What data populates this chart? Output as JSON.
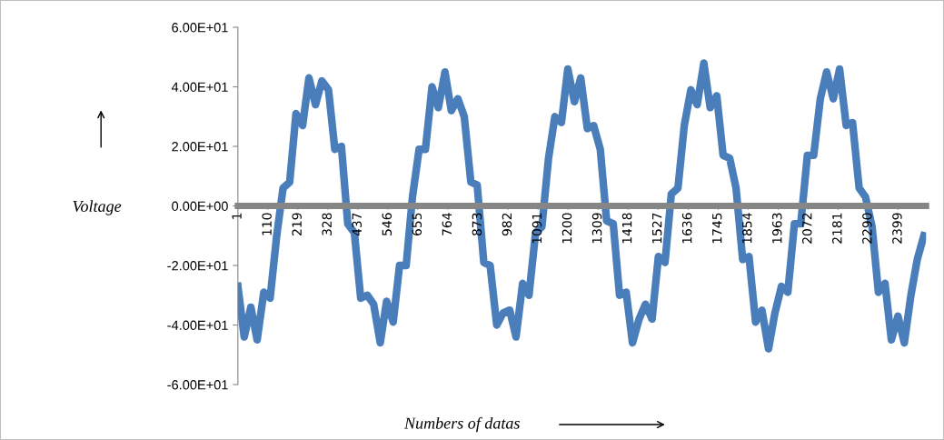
{
  "chart_data": {
    "type": "line",
    "xlabel": "Numbers of datas",
    "ylabel": "Voltage",
    "xlim": [
      1,
      2500
    ],
    "xticks": [
      1,
      110,
      219,
      328,
      437,
      546,
      655,
      764,
      873,
      982,
      1091,
      1200,
      1309,
      1418,
      1527,
      1636,
      1745,
      1854,
      1963,
      2072,
      2181,
      2290,
      2399
    ],
    "ylim": [
      -60,
      60
    ],
    "yticks": [
      {
        "value": -60,
        "label": "-6.00E+01"
      },
      {
        "value": -40,
        "label": "-4.00E+01"
      },
      {
        "value": -20,
        "label": "-2.00E+01"
      },
      {
        "value": 0,
        "label": "0.00E+00"
      },
      {
        "value": 20,
        "label": "2.00E+01"
      },
      {
        "value": 40,
        "label": "4.00E+01"
      },
      {
        "value": 60,
        "label": "6.00E+01"
      }
    ],
    "grid": false,
    "legend": false,
    "marker": "none",
    "line_style": "solid",
    "series": [
      {
        "color": "#4a7ebb",
        "x": [
          1,
          24,
          48,
          71,
          95,
          118,
          142,
          165,
          189,
          212,
          236,
          259,
          283,
          306,
          330,
          353,
          377,
          400,
          424,
          447,
          471,
          494,
          518,
          541,
          565,
          588,
          612,
          635,
          659,
          682,
          706,
          729,
          753,
          776,
          800,
          823,
          847,
          870,
          894,
          917,
          941,
          964,
          988,
          1011,
          1035,
          1058,
          1082,
          1105,
          1129,
          1152,
          1176,
          1199,
          1223,
          1246,
          1270,
          1293,
          1317,
          1340,
          1364,
          1387,
          1411,
          1434,
          1458,
          1481,
          1505,
          1528,
          1552,
          1575,
          1599,
          1622,
          1646,
          1669,
          1693,
          1716,
          1740,
          1763,
          1787,
          1810,
          1834,
          1857,
          1881,
          1904,
          1928,
          1951,
          1975,
          1998,
          2022,
          2045,
          2069,
          2092,
          2116,
          2139,
          2163,
          2186,
          2210,
          2233,
          2257,
          2280,
          2304,
          2327,
          2351,
          2374,
          2398,
          2421,
          2445,
          2468,
          2492
        ],
        "values": [
          -27,
          -44,
          -34,
          -45,
          -29,
          -31,
          -10,
          6,
          8,
          31,
          27,
          43,
          34,
          42,
          39,
          19,
          20,
          -6,
          -9,
          -31,
          -30,
          -33,
          -46,
          -32,
          -39,
          -20,
          -20,
          3,
          19,
          19,
          40,
          33,
          45,
          32,
          36,
          30,
          8,
          7,
          -19,
          -20,
          -40,
          -36,
          -35,
          -44,
          -26,
          -30,
          -9,
          -7,
          16,
          30,
          28,
          46,
          35,
          43,
          26,
          27,
          19,
          -5,
          -6,
          -30,
          -29,
          -46,
          -38,
          -33,
          -38,
          -17,
          -19,
          4,
          6,
          27,
          39,
          34,
          48,
          33,
          37,
          17,
          16,
          6,
          -18,
          -17,
          -39,
          -35,
          -48,
          -36,
          -27,
          -29,
          -6,
          -6,
          17,
          17,
          36,
          45,
          36,
          46,
          27,
          28,
          6,
          3,
          -7,
          -29,
          -26,
          -45,
          -37,
          -46,
          -30,
          -18,
          -10
        ]
      }
    ]
  }
}
